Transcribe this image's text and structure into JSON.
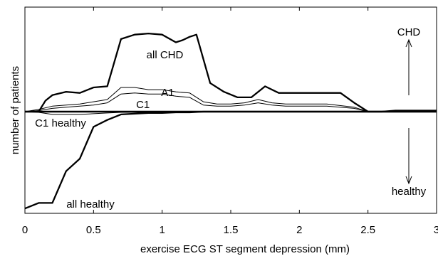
{
  "chart_data": {
    "type": "line",
    "xlabel": "exercise ECG ST segment depression (mm)",
    "ylabel": "number of patients",
    "xlim": [
      0,
      3
    ],
    "x_ticks": [
      {
        "value": 0,
        "label": "0"
      },
      {
        "value": 0.5,
        "label": "0.5"
      },
      {
        "value": 1,
        "label": "1"
      },
      {
        "value": 1.5,
        "label": "1.5"
      },
      {
        "value": 2,
        "label": "2"
      },
      {
        "value": 2.5,
        "label": "2.5"
      },
      {
        "value": 3,
        "label": "3"
      }
    ],
    "y_ticks_shown": false,
    "grid": false,
    "series": [
      {
        "name": "all CHD",
        "color": "#000000",
        "weight": "bold",
        "x": [
          0,
          0.1,
          0.15,
          0.2,
          0.3,
          0.4,
          0.5,
          0.6,
          0.7,
          0.8,
          0.9,
          1.0,
          1.1,
          1.15,
          1.2,
          1.25,
          1.35,
          1.45,
          1.55,
          1.65,
          1.75,
          1.85,
          2.0,
          2.1,
          2.2,
          2.3,
          2.4,
          2.5,
          2.6,
          2.7,
          2.8,
          2.9,
          3.0
        ],
        "y": [
          0,
          0,
          10,
          15,
          18,
          17,
          22,
          23,
          66,
          70,
          71,
          70,
          63,
          65,
          68,
          70,
          26,
          18,
          13,
          13,
          23,
          17,
          17,
          17,
          17,
          17,
          8,
          0,
          0,
          1,
          1,
          1,
          1
        ]
      },
      {
        "name": "A1",
        "color": "#000000",
        "weight": "thin",
        "x": [
          0,
          0.1,
          0.2,
          0.3,
          0.4,
          0.5,
          0.6,
          0.7,
          0.8,
          0.9,
          1.0,
          1.1,
          1.2,
          1.3,
          1.4,
          1.5,
          1.6,
          1.7,
          1.8,
          1.9,
          2.0,
          2.2,
          2.4,
          2.5,
          3.0
        ],
        "y": [
          0,
          2,
          5,
          6,
          7,
          9,
          11,
          22,
          22,
          20,
          20,
          18,
          17,
          9,
          7,
          7,
          8,
          11,
          8,
          7,
          7,
          7,
          4,
          0,
          0
        ]
      },
      {
        "name": "C1",
        "color": "#000000",
        "weight": "thin",
        "x": [
          0,
          0.1,
          0.2,
          0.3,
          0.4,
          0.5,
          0.6,
          0.7,
          0.8,
          0.9,
          1.0,
          1.1,
          1.2,
          1.3,
          1.4,
          1.5,
          1.6,
          1.7,
          1.8,
          1.9,
          2.0,
          2.2,
          2.4,
          2.5,
          3.0
        ],
        "y": [
          0,
          1,
          3,
          4,
          5,
          6,
          8,
          16,
          17,
          16,
          16,
          14,
          13,
          6,
          5,
          5,
          6,
          8,
          6,
          5,
          5,
          5,
          3,
          0,
          0
        ]
      },
      {
        "name": "C1 healthy",
        "color": "#000000",
        "weight": "thin",
        "x": [
          0,
          0.1,
          0.2,
          0.3,
          0.4,
          0.5,
          0.6,
          0.7,
          0.8,
          1.0,
          1.2,
          1.3,
          3.0
        ],
        "y": [
          0,
          -1,
          -4,
          -4,
          -4,
          -3,
          -2,
          -1,
          -1,
          -1,
          0,
          0,
          0
        ]
      },
      {
        "name": "all healthy",
        "color": "#000000",
        "weight": "bold",
        "x": [
          0,
          0.1,
          0.2,
          0.3,
          0.4,
          0.5,
          0.6,
          0.7,
          0.8,
          0.9,
          1.0,
          1.1,
          1.2,
          1.3,
          2.0,
          3.0
        ],
        "y": [
          -140,
          -132,
          -132,
          -86,
          -68,
          -22,
          -12,
          -4,
          -3,
          -2,
          -2,
          -1,
          -1,
          0,
          0,
          0
        ]
      }
    ],
    "baseline": 0,
    "annotations": {
      "all_chd": "all CHD",
      "a1": "A1",
      "c1": "C1",
      "c1_healthy": "C1 healthy",
      "all_healthy": "all healthy",
      "chd": "CHD",
      "healthy": "healthy"
    }
  }
}
